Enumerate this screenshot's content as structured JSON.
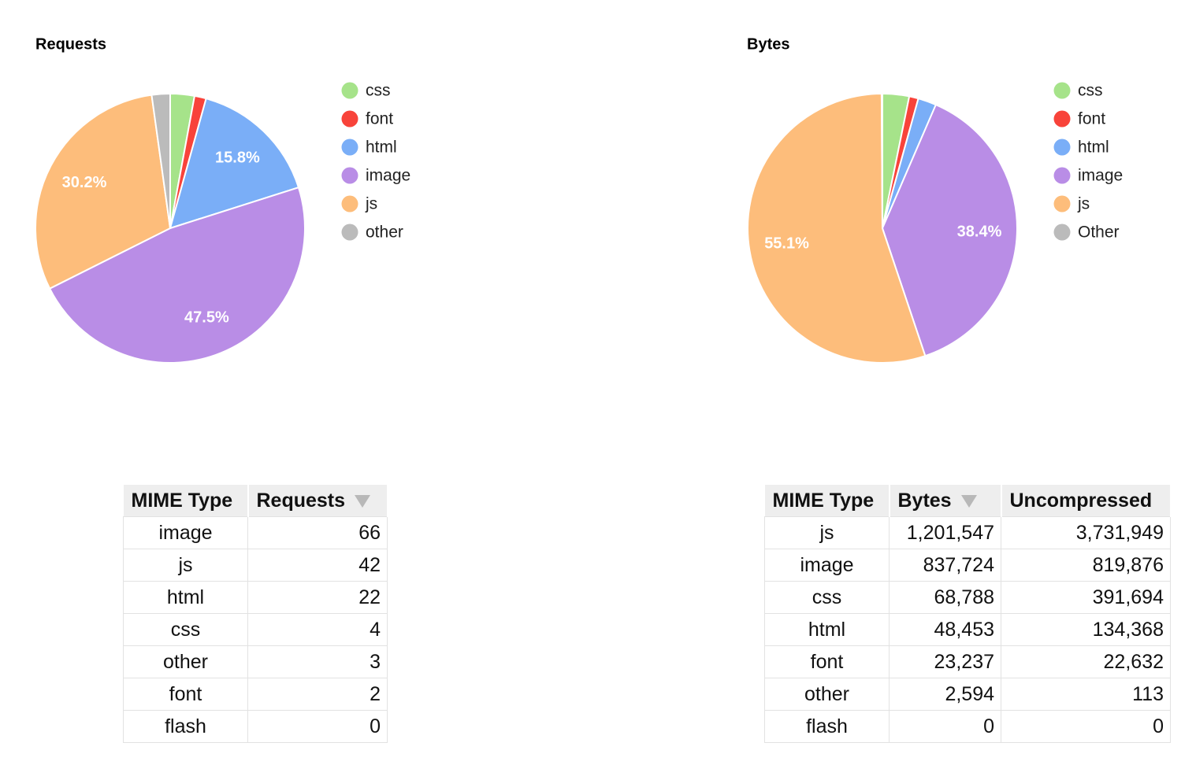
{
  "chart_data": [
    {
      "type": "pie",
      "title": "Requests",
      "categories": [
        "css",
        "font",
        "html",
        "image",
        "js",
        "other"
      ],
      "values": [
        2.9,
        1.4,
        15.8,
        47.5,
        30.2,
        2.2
      ],
      "value_labels": [
        null,
        null,
        "15.8%",
        "47.5%",
        "30.2%",
        null
      ],
      "colors": [
        "#a6e38a",
        "#f8433a",
        "#7aaef7",
        "#b98de6",
        "#fdbd7b",
        "#bbbbbb"
      ],
      "legend": "right"
    },
    {
      "type": "pie",
      "title": "Bytes",
      "categories": [
        "css",
        "font",
        "html",
        "image",
        "js",
        "Other"
      ],
      "values": [
        3.2,
        1.1,
        2.2,
        38.4,
        55.1,
        0.1
      ],
      "value_labels": [
        null,
        null,
        null,
        "38.4%",
        "55.1%",
        null
      ],
      "colors": [
        "#a6e38a",
        "#f8433a",
        "#7aaef7",
        "#b98de6",
        "#fdbd7b",
        "#bbbbbb"
      ],
      "legend": "right"
    }
  ],
  "tables": [
    {
      "header": [
        "MIME Type",
        "Requests"
      ],
      "sorted_column": 1,
      "rows": [
        [
          "image",
          "66"
        ],
        [
          "js",
          "42"
        ],
        [
          "html",
          "22"
        ],
        [
          "css",
          "4"
        ],
        [
          "other",
          "3"
        ],
        [
          "font",
          "2"
        ],
        [
          "flash",
          "0"
        ]
      ]
    },
    {
      "header": [
        "MIME Type",
        "Bytes",
        "Uncompressed"
      ],
      "sorted_column": 1,
      "rows": [
        [
          "js",
          "1,201,547",
          "3,731,949"
        ],
        [
          "image",
          "837,724",
          "819,876"
        ],
        [
          "css",
          "68,788",
          "391,694"
        ],
        [
          "html",
          "48,453",
          "134,368"
        ],
        [
          "font",
          "23,237",
          "22,632"
        ],
        [
          "other",
          "2,594",
          "113"
        ],
        [
          "flash",
          "0",
          "0"
        ]
      ]
    }
  ]
}
